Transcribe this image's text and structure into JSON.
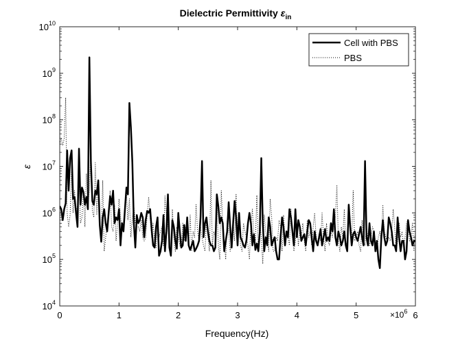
{
  "chart_data": {
    "type": "line",
    "title": "Dielectric Permittivity ",
    "title_symbol": "ε",
    "title_sub": "in",
    "xlabel": "Frequency(Hz)",
    "ylabel": "ε",
    "x_multiplier": "×10",
    "x_multiplier_exp": "6",
    "xlim": [
      0,
      6000000
    ],
    "ylim": [
      10000,
      10000000000
    ],
    "yscale": "log",
    "grid": false,
    "legend_position": "top-right",
    "x_ticks": [
      0,
      1,
      2,
      3,
      4,
      5,
      6
    ],
    "x_tick_labels": [
      "0",
      "1",
      "2",
      "3",
      "4",
      "5",
      "6"
    ],
    "y_ticks": [
      4,
      5,
      6,
      7,
      8,
      9,
      10
    ],
    "y_tick_labels": [
      "10",
      "10",
      "10",
      "10",
      "10",
      "10",
      "10"
    ],
    "y_tick_exps": [
      "4",
      "5",
      "6",
      "7",
      "8",
      "9",
      "10"
    ],
    "series": [
      {
        "name": "Cell with PBS",
        "style": "solid",
        "color": "#000000",
        "x_step": 25000,
        "y": [
          1400000,
          1200000,
          700000,
          1200000,
          1600000,
          22000000,
          3000000,
          15000000,
          22000000,
          2000000,
          2200000,
          1000000,
          500000,
          24000000,
          1500000,
          3500000,
          2800000,
          1500000,
          2200000,
          1200000,
          2200000000,
          13000000,
          1800000,
          1500000,
          3000000,
          2500000,
          5000000,
          550000,
          240000,
          800000,
          1200000,
          600000,
          400000,
          1000000,
          2300000,
          1500000,
          3000000,
          600000,
          800000,
          700000,
          1200000,
          200000,
          600000,
          400000,
          1200000,
          3500000,
          2500000,
          230000000,
          70000000,
          12000000,
          600000,
          180000,
          900000,
          600000,
          700000,
          1000000,
          800000,
          300000,
          700000,
          1100000,
          1000000,
          1200000,
          450000,
          200000,
          180000,
          500000,
          800000,
          120000,
          150000,
          250000,
          900000,
          150000,
          400000,
          2500000,
          180000,
          120000,
          700000,
          500000,
          250000,
          170000,
          1000000,
          400000,
          180000,
          200000,
          550000,
          250000,
          800000,
          200000,
          160000,
          200000,
          250000,
          150000,
          170000,
          200000,
          250000,
          800000,
          13000000,
          300000,
          600000,
          800000,
          400000,
          250000,
          200000,
          200000,
          150000,
          180000,
          2500000,
          1400000,
          600000,
          800000,
          600000,
          150000,
          250000,
          400000,
          1700000,
          500000,
          180000,
          600000,
          1800000,
          800000,
          200000,
          1000000,
          300000,
          250000,
          200000,
          180000,
          260000,
          600000,
          1000000,
          600000,
          200000,
          350000,
          160000,
          220000,
          150000,
          400000,
          15000000,
          600000,
          150000,
          300000,
          200000,
          800000,
          500000,
          200000,
          250000,
          300000,
          150000,
          100000,
          100000,
          300000,
          800000,
          500000,
          200000,
          400000,
          300000,
          1200000,
          800000,
          400000,
          200000,
          1200000,
          300000,
          700000,
          500000,
          250000,
          300000,
          350000,
          200000,
          400000,
          700000,
          600000,
          300000,
          150000,
          400000,
          250000,
          200000,
          300000,
          450000,
          200000,
          300000,
          450000,
          250000,
          300000,
          250000,
          600000,
          400000,
          1200000,
          300000,
          200000,
          400000,
          300000,
          200000,
          250000,
          400000,
          200000,
          150000,
          1500000,
          500000,
          200000,
          350000,
          400000,
          300000,
          250000,
          350000,
          500000,
          300000,
          200000,
          13000000,
          300000,
          200000,
          600000,
          250000,
          200000,
          400000,
          150000,
          250000,
          100000,
          65000,
          300000,
          700000,
          300000,
          200000,
          250000,
          800000,
          600000,
          400000,
          200000,
          200000,
          150000,
          800000,
          300000,
          150000,
          250000,
          250000,
          100000,
          150000,
          700000,
          400000,
          300000,
          200000,
          250000,
          250000,
          200000,
          800000,
          75000,
          200000,
          300000,
          400000,
          200000,
          100000,
          400000,
          450000,
          500000,
          4000000,
          80000,
          200000,
          300000,
          500000,
          200000,
          250000,
          1200000,
          600000,
          250000,
          150000,
          120000
        ]
      },
      {
        "name": "PBS",
        "style": "dotted",
        "color": "#000000",
        "x_step": 25000,
        "y": [
          30000000,
          40000000,
          28000000,
          40000000,
          300000000,
          1000000,
          500000,
          900000,
          8000000,
          1000000,
          3000000,
          900000,
          1500000,
          6000000,
          600000,
          800000,
          3000000,
          500000,
          7000000,
          1500000,
          3000000,
          25000000,
          1100000,
          800000,
          12000000,
          900000,
          4000000,
          500000,
          300000,
          5000000,
          150000,
          300000,
          600000,
          900000,
          3000000,
          500000,
          400000,
          1500000,
          250000,
          600000,
          2000000,
          800000,
          500000,
          600000,
          1200000,
          2800000,
          700000,
          2000000,
          300000,
          800000,
          1400000,
          600000,
          500000,
          500000,
          400000,
          700000,
          300000,
          250000,
          300000,
          900000,
          2200000,
          800000,
          300000,
          600000,
          250000,
          180000,
          700000,
          300000,
          400000,
          500000,
          200000,
          2300000,
          900000,
          500000,
          200000,
          150000,
          1200000,
          300000,
          150000,
          500000,
          300000,
          200000,
          180000,
          600000,
          250000,
          500000,
          600000,
          200000,
          900000,
          150000,
          400000,
          300000,
          1500000,
          400000,
          250000,
          500000,
          300000,
          200000,
          150000,
          700000,
          300000,
          150000,
          5000000,
          200000,
          400000,
          300000,
          2000000,
          200000,
          100000,
          3000000,
          600000,
          250000,
          100000,
          700000,
          400000,
          150000,
          300000,
          700000,
          250000,
          2500000,
          300000,
          800000,
          200000,
          150000,
          600000,
          400000,
          300000,
          200000,
          100000,
          600000,
          1200000,
          300000,
          250000,
          2400000,
          150000,
          700000,
          300000,
          80000,
          900000,
          400000,
          250000,
          150000,
          2000000,
          800000,
          150000,
          150000,
          300000,
          250000,
          700000,
          500000,
          150000,
          900000,
          250000,
          400000,
          300000,
          200000,
          1200000,
          300000,
          150000,
          250000,
          600000,
          200000,
          400000,
          300000,
          600000,
          250000,
          150000,
          700000,
          300000,
          400000,
          200000,
          500000,
          1000000,
          300000,
          200000,
          350000,
          250000,
          1000000,
          300000,
          150000,
          600000,
          250000,
          200000,
          400000,
          300000,
          500000,
          800000,
          4000000,
          250000,
          150000,
          500000,
          300000,
          1200000,
          200000,
          250000,
          800000,
          400000,
          300000,
          3000000,
          250000,
          300000,
          400000,
          200000,
          150000,
          700000,
          250000,
          200000,
          500000,
          250000,
          200000,
          300000,
          500000,
          400000,
          250000,
          150000,
          300000,
          400000,
          200000,
          1500000,
          400000,
          300000,
          250000,
          300000,
          250000,
          400000,
          1200000,
          500000,
          150000,
          250000,
          600000,
          300000,
          400000,
          200000,
          300000,
          600000,
          700000,
          250000,
          300000,
          600000,
          150000,
          500000,
          300000,
          3000000,
          700000,
          400000,
          250000,
          800000,
          4000000,
          300000,
          250000,
          4000000,
          200000,
          150000,
          900000,
          600000,
          400000,
          300000,
          200000,
          250000,
          5000000
        ]
      }
    ]
  }
}
